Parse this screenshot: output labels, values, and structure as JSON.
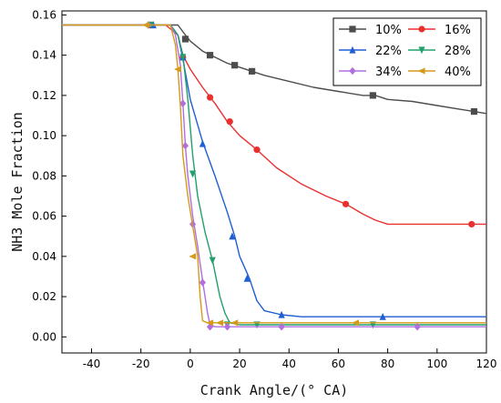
{
  "chart_data": {
    "type": "line",
    "xlabel": "Crank Angle/(° CA)",
    "ylabel": "NH3 Mole Fraction",
    "xlim": [
      -52,
      120
    ],
    "ylim": [
      -0.008,
      0.162
    ],
    "xticks": [
      -40,
      -20,
      0,
      20,
      40,
      60,
      80,
      100,
      120
    ],
    "yticks": [
      0.0,
      0.02,
      0.04,
      0.06,
      0.08,
      0.1,
      0.12,
      0.14,
      0.16
    ],
    "ytick_labels": [
      "0.00",
      "0.02",
      "0.04",
      "0.06",
      "0.08",
      "0.10",
      "0.12",
      "0.14",
      "0.16"
    ],
    "grid": false,
    "legend_position": "top-right",
    "series": [
      {
        "name": "10%",
        "color": "#4d4d4d",
        "marker": "square",
        "x": [
          -52,
          -17,
          -10,
          -5,
          -2,
          0,
          5,
          10,
          15,
          20,
          25,
          30,
          40,
          50,
          60,
          70,
          75,
          80,
          90,
          100,
          110,
          120
        ],
        "y": [
          0.155,
          0.155,
          0.155,
          0.155,
          0.15,
          0.147,
          0.142,
          0.139,
          0.136,
          0.134,
          0.132,
          0.13,
          0.127,
          0.124,
          0.122,
          0.12,
          0.12,
          0.118,
          0.117,
          0.115,
          0.113,
          0.111
        ],
        "marker_x": [
          -16,
          -2,
          8,
          18,
          25,
          74,
          115
        ],
        "marker_y": [
          0.155,
          0.148,
          0.14,
          0.135,
          0.132,
          0.12,
          0.112
        ]
      },
      {
        "name": "16%",
        "color": "#e8312f",
        "marker": "circle",
        "x": [
          -52,
          -17,
          -10,
          -5,
          -3,
          0,
          5,
          10,
          15,
          20,
          27,
          35,
          45,
          55,
          63,
          70,
          75,
          80,
          90,
          100,
          110,
          120
        ],
        "y": [
          0.155,
          0.155,
          0.155,
          0.15,
          0.14,
          0.133,
          0.124,
          0.116,
          0.107,
          0.1,
          0.093,
          0.084,
          0.076,
          0.07,
          0.066,
          0.061,
          0.058,
          0.056,
          0.056,
          0.056,
          0.056,
          0.056
        ],
        "marker_x": [
          -16,
          -3,
          8,
          16,
          27,
          63,
          114
        ],
        "marker_y": [
          0.155,
          0.139,
          0.119,
          0.107,
          0.093,
          0.066,
          0.056
        ]
      },
      {
        "name": "22%",
        "color": "#1f5fd3",
        "marker": "triangle-up",
        "x": [
          -52,
          -16,
          -8,
          -5,
          -3,
          0,
          5,
          10,
          15,
          18,
          20,
          24,
          27,
          30,
          37,
          45,
          78,
          100,
          120
        ],
        "y": [
          0.155,
          0.155,
          0.155,
          0.15,
          0.138,
          0.118,
          0.097,
          0.08,
          0.062,
          0.05,
          0.04,
          0.029,
          0.018,
          0.013,
          0.011,
          0.01,
          0.01,
          0.01,
          0.01
        ],
        "marker_x": [
          -15,
          -3,
          5,
          17,
          23,
          37,
          78
        ],
        "marker_y": [
          0.155,
          0.139,
          0.096,
          0.05,
          0.029,
          0.011,
          0.01
        ]
      },
      {
        "name": "28%",
        "color": "#22a06b",
        "marker": "triangle-down",
        "x": [
          -52,
          -16,
          -8,
          -5,
          -3,
          -1,
          1,
          3,
          6,
          9,
          12,
          14,
          16,
          20,
          27,
          50,
          74,
          100,
          120
        ],
        "y": [
          0.155,
          0.155,
          0.155,
          0.15,
          0.14,
          0.118,
          0.09,
          0.07,
          0.052,
          0.038,
          0.02,
          0.012,
          0.007,
          0.006,
          0.006,
          0.006,
          0.006,
          0.006,
          0.006
        ],
        "marker_x": [
          -16,
          -3,
          1,
          9,
          15,
          27,
          74
        ],
        "marker_y": [
          0.155,
          0.139,
          0.081,
          0.038,
          0.006,
          0.006,
          0.006
        ]
      },
      {
        "name": "34%",
        "color": "#b06ee0",
        "marker": "diamond",
        "x": [
          -52,
          -17,
          -8,
          -6,
          -4,
          -3,
          -2,
          -1,
          1,
          3,
          5,
          7,
          8,
          10,
          15,
          37,
          92,
          120
        ],
        "y": [
          0.155,
          0.155,
          0.155,
          0.15,
          0.135,
          0.116,
          0.095,
          0.08,
          0.06,
          0.045,
          0.028,
          0.012,
          0.006,
          0.005,
          0.005,
          0.005,
          0.005,
          0.005
        ],
        "marker_x": [
          -17,
          -3,
          -2,
          1,
          5,
          8,
          15,
          37,
          92
        ],
        "marker_y": [
          0.155,
          0.116,
          0.095,
          0.056,
          0.027,
          0.005,
          0.005,
          0.005,
          0.005
        ]
      },
      {
        "name": "40%",
        "color": "#d49a1a",
        "marker": "triangle-left",
        "x": [
          -52,
          -18,
          -8,
          -6,
          -5,
          -4,
          -3,
          -1,
          1,
          3,
          4,
          5,
          7,
          10,
          15,
          18,
          30,
          67,
          120
        ],
        "y": [
          0.155,
          0.155,
          0.155,
          0.145,
          0.133,
          0.115,
          0.09,
          0.07,
          0.055,
          0.04,
          0.02,
          0.008,
          0.007,
          0.007,
          0.007,
          0.007,
          0.007,
          0.007,
          0.007
        ],
        "marker_x": [
          -18,
          -5,
          1,
          8,
          12,
          18,
          67
        ],
        "marker_y": [
          0.155,
          0.133,
          0.04,
          0.007,
          0.007,
          0.007,
          0.007
        ]
      }
    ]
  }
}
